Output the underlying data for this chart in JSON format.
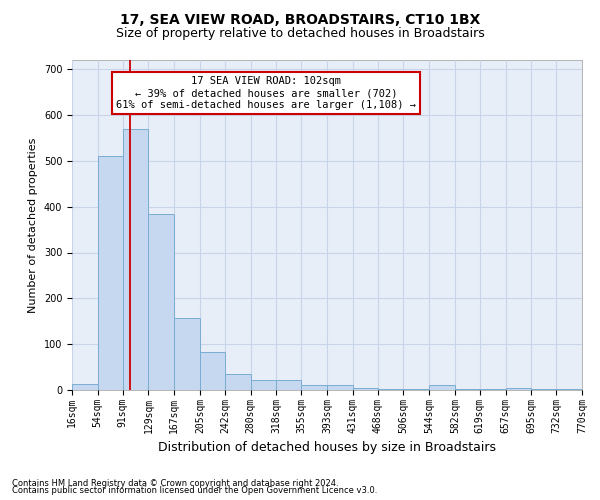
{
  "title": "17, SEA VIEW ROAD, BROADSTAIRS, CT10 1BX",
  "subtitle": "Size of property relative to detached houses in Broadstairs",
  "xlabel": "Distribution of detached houses by size in Broadstairs",
  "ylabel": "Number of detached properties",
  "bin_edges": [
    16,
    54,
    91,
    129,
    167,
    205,
    242,
    280,
    318,
    355,
    393,
    431,
    468,
    506,
    544,
    582,
    619,
    657,
    695,
    732,
    770
  ],
  "bar_heights": [
    14,
    510,
    570,
    385,
    158,
    83,
    35,
    22,
    22,
    10,
    10,
    5,
    2,
    2,
    10,
    2,
    2,
    5,
    2,
    2
  ],
  "bar_color": "#c5d8ef",
  "bar_edge_color": "#7aadd4",
  "red_line_x": 102,
  "annotation_line1": "17 SEA VIEW ROAD: 102sqm",
  "annotation_line2": "← 39% of detached houses are smaller (702)",
  "annotation_line3": "61% of semi-detached houses are larger (1,108) →",
  "annotation_box_facecolor": "#ffffff",
  "annotation_box_edgecolor": "#cc0000",
  "ylim_max": 720,
  "yticks": [
    0,
    100,
    200,
    300,
    400,
    500,
    600,
    700
  ],
  "footer1": "Contains HM Land Registry data © Crown copyright and database right 2024.",
  "footer2": "Contains public sector information licensed under the Open Government Licence v3.0.",
  "bg_color": "#ffffff",
  "grid_color": "#c8d4e8",
  "title_fontsize": 10,
  "subtitle_fontsize": 9,
  "ylabel_fontsize": 8,
  "xlabel_fontsize": 9,
  "tick_fontsize": 7,
  "footer_fontsize": 6
}
